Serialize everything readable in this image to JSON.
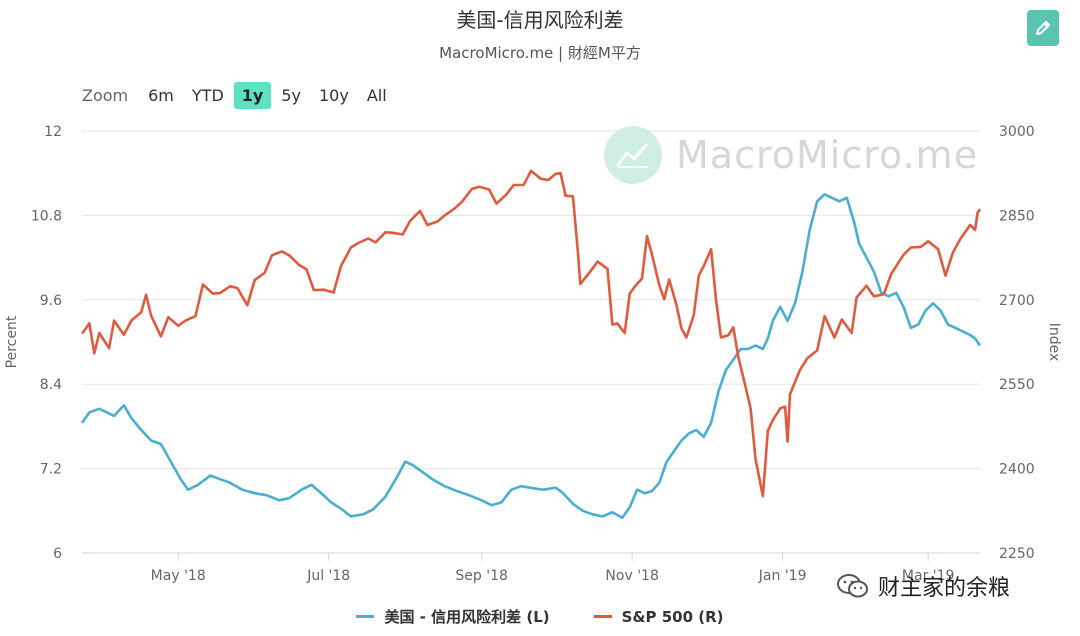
{
  "header": {
    "title": "美国-信用风险利差",
    "subtitle": "MacroMicro.me | 財經M平方"
  },
  "zoom": {
    "label": "Zoom",
    "buttons": [
      "6m",
      "YTD",
      "1y",
      "5y",
      "10y",
      "All"
    ],
    "active": "1y"
  },
  "watermark": {
    "text": "MacroMicro.me"
  },
  "wechat": {
    "text": "财主家的余粮"
  },
  "colors": {
    "spread": "#4aaed0",
    "sp500": "#e05a3e",
    "accent": "#5de1c1",
    "grid": "#e6e6e6"
  },
  "chart_data": {
    "type": "line",
    "left_axis": {
      "label": "Percent",
      "range": [
        6,
        12
      ],
      "ticks": [
        "6",
        "7.2",
        "8.4",
        "9.6",
        "10.8",
        "12"
      ]
    },
    "right_axis": {
      "label": "Index",
      "range": [
        2250,
        3000
      ],
      "ticks": [
        "2250",
        "2400",
        "2550",
        "2700",
        "2850",
        "3000"
      ]
    },
    "x_axis": {
      "range": [
        "2018-03-23",
        "2019-03-22"
      ],
      "ticks": [
        {
          "date": "2018-05-01",
          "label": "May '18"
        },
        {
          "date": "2018-07-01",
          "label": "Jul '18"
        },
        {
          "date": "2018-09-01",
          "label": "Sep '18"
        },
        {
          "date": "2018-11-01",
          "label": "Nov '18"
        },
        {
          "date": "2019-01-01",
          "label": "Jan '19"
        },
        {
          "date": "2019-03-01",
          "label": "Mar '19"
        }
      ]
    },
    "grid": true,
    "legend_position": "bottom-center",
    "series": [
      {
        "name": "美国 - 信用风险利差 (L)",
        "axis": "left",
        "points": [
          [
            "2018-03-23",
            7.85
          ],
          [
            "2018-03-26",
            8.0
          ],
          [
            "2018-03-30",
            8.05
          ],
          [
            "2018-04-05",
            7.95
          ],
          [
            "2018-04-09",
            8.1
          ],
          [
            "2018-04-12",
            7.92
          ],
          [
            "2018-04-16",
            7.75
          ],
          [
            "2018-04-20",
            7.6
          ],
          [
            "2018-04-24",
            7.55
          ],
          [
            "2018-04-28",
            7.3
          ],
          [
            "2018-05-02",
            7.05
          ],
          [
            "2018-05-05",
            6.9
          ],
          [
            "2018-05-09",
            6.97
          ],
          [
            "2018-05-14",
            7.1
          ],
          [
            "2018-05-18",
            7.05
          ],
          [
            "2018-05-22",
            7.0
          ],
          [
            "2018-05-27",
            6.9
          ],
          [
            "2018-06-01",
            6.85
          ],
          [
            "2018-06-06",
            6.82
          ],
          [
            "2018-06-11",
            6.75
          ],
          [
            "2018-06-15",
            6.78
          ],
          [
            "2018-06-20",
            6.9
          ],
          [
            "2018-06-24",
            6.97
          ],
          [
            "2018-06-28",
            6.85
          ],
          [
            "2018-07-02",
            6.72
          ],
          [
            "2018-07-06",
            6.63
          ],
          [
            "2018-07-10",
            6.52
          ],
          [
            "2018-07-15",
            6.55
          ],
          [
            "2018-07-19",
            6.62
          ],
          [
            "2018-07-24",
            6.8
          ],
          [
            "2018-07-29",
            7.1
          ],
          [
            "2018-08-01",
            7.3
          ],
          [
            "2018-08-04",
            7.25
          ],
          [
            "2018-08-08",
            7.15
          ],
          [
            "2018-08-12",
            7.05
          ],
          [
            "2018-08-17",
            6.95
          ],
          [
            "2018-08-22",
            6.88
          ],
          [
            "2018-08-27",
            6.82
          ],
          [
            "2018-09-01",
            6.75
          ],
          [
            "2018-09-05",
            6.68
          ],
          [
            "2018-09-09",
            6.72
          ],
          [
            "2018-09-13",
            6.9
          ],
          [
            "2018-09-17",
            6.95
          ],
          [
            "2018-09-22",
            6.92
          ],
          [
            "2018-09-26",
            6.9
          ],
          [
            "2018-10-01",
            6.93
          ],
          [
            "2018-10-04",
            6.85
          ],
          [
            "2018-10-08",
            6.7
          ],
          [
            "2018-10-12",
            6.6
          ],
          [
            "2018-10-16",
            6.55
          ],
          [
            "2018-10-20",
            6.52
          ],
          [
            "2018-10-24",
            6.58
          ],
          [
            "2018-10-28",
            6.5
          ],
          [
            "2018-10-31",
            6.65
          ],
          [
            "2018-11-03",
            6.9
          ],
          [
            "2018-11-06",
            6.85
          ],
          [
            "2018-11-09",
            6.88
          ],
          [
            "2018-11-12",
            7.0
          ],
          [
            "2018-11-15",
            7.3
          ],
          [
            "2018-11-18",
            7.45
          ],
          [
            "2018-11-21",
            7.6
          ],
          [
            "2018-11-24",
            7.7
          ],
          [
            "2018-11-27",
            7.75
          ],
          [
            "2018-11-30",
            7.65
          ],
          [
            "2018-12-03",
            7.85
          ],
          [
            "2018-12-06",
            8.3
          ],
          [
            "2018-12-09",
            8.6
          ],
          [
            "2018-12-12",
            8.75
          ],
          [
            "2018-12-15",
            8.9
          ],
          [
            "2018-12-18",
            8.9
          ],
          [
            "2018-12-21",
            8.95
          ],
          [
            "2018-12-24",
            8.9
          ],
          [
            "2018-12-26",
            9.05
          ],
          [
            "2018-12-28",
            9.3
          ],
          [
            "2018-12-31",
            9.5
          ],
          [
            "2019-01-03",
            9.3
          ],
          [
            "2019-01-06",
            9.55
          ],
          [
            "2019-01-09",
            10.0
          ],
          [
            "2019-01-12",
            10.6
          ],
          [
            "2019-01-15",
            11.0
          ],
          [
            "2019-01-18",
            11.1
          ],
          [
            "2019-01-21",
            11.05
          ],
          [
            "2019-01-24",
            11.0
          ],
          [
            "2019-01-27",
            11.05
          ],
          [
            "2019-01-30",
            10.7
          ],
          [
            "2019-02-01",
            10.4
          ],
          [
            "2019-02-04",
            10.2
          ],
          [
            "2019-02-07",
            10.0
          ],
          [
            "2019-02-10",
            9.7
          ],
          [
            "2019-02-13",
            9.65
          ],
          [
            "2019-02-16",
            9.7
          ],
          [
            "2019-02-19",
            9.5
          ],
          [
            "2019-02-22",
            9.2
          ],
          [
            "2019-02-25",
            9.25
          ],
          [
            "2019-02-28",
            9.45
          ],
          [
            "2019-03-03",
            9.55
          ],
          [
            "2019-03-06",
            9.45
          ],
          [
            "2019-03-09",
            9.25
          ],
          [
            "2019-03-12",
            9.2
          ],
          [
            "2019-03-15",
            9.15
          ],
          [
            "2019-03-18",
            9.1
          ],
          [
            "2019-03-20",
            9.05
          ],
          [
            "2019-03-22",
            8.95
          ]
        ]
      },
      {
        "name": "S&P 500 (R)",
        "axis": "right",
        "points": [
          [
            "2018-03-23",
            2640
          ],
          [
            "2018-03-26",
            2658
          ],
          [
            "2018-03-28",
            2605
          ],
          [
            "2018-03-30",
            2641
          ],
          [
            "2018-04-03",
            2614
          ],
          [
            "2018-04-05",
            2663
          ],
          [
            "2018-04-09",
            2638
          ],
          [
            "2018-04-12",
            2663
          ],
          [
            "2018-04-16",
            2678
          ],
          [
            "2018-04-18",
            2709
          ],
          [
            "2018-04-20",
            2672
          ],
          [
            "2018-04-24",
            2635
          ],
          [
            "2018-04-27",
            2669
          ],
          [
            "2018-05-01",
            2654
          ],
          [
            "2018-05-04",
            2663
          ],
          [
            "2018-05-08",
            2671
          ],
          [
            "2018-05-11",
            2727
          ],
          [
            "2018-05-15",
            2711
          ],
          [
            "2018-05-18",
            2712
          ],
          [
            "2018-05-22",
            2724
          ],
          [
            "2018-05-25",
            2721
          ],
          [
            "2018-05-29",
            2690
          ],
          [
            "2018-06-01",
            2735
          ],
          [
            "2018-06-05",
            2748
          ],
          [
            "2018-06-08",
            2779
          ],
          [
            "2018-06-12",
            2786
          ],
          [
            "2018-06-15",
            2779
          ],
          [
            "2018-06-19",
            2762
          ],
          [
            "2018-06-22",
            2754
          ],
          [
            "2018-06-25",
            2717
          ],
          [
            "2018-06-29",
            2718
          ],
          [
            "2018-07-03",
            2713
          ],
          [
            "2018-07-06",
            2760
          ],
          [
            "2018-07-10",
            2793
          ],
          [
            "2018-07-13",
            2801
          ],
          [
            "2018-07-17",
            2809
          ],
          [
            "2018-07-20",
            2802
          ],
          [
            "2018-07-24",
            2820
          ],
          [
            "2018-07-27",
            2819
          ],
          [
            "2018-07-31",
            2816
          ],
          [
            "2018-08-03",
            2840
          ],
          [
            "2018-08-07",
            2858
          ],
          [
            "2018-08-10",
            2833
          ],
          [
            "2018-08-14",
            2839
          ],
          [
            "2018-08-17",
            2850
          ],
          [
            "2018-08-21",
            2862
          ],
          [
            "2018-08-24",
            2874
          ],
          [
            "2018-08-28",
            2897
          ],
          [
            "2018-08-31",
            2901
          ],
          [
            "2018-09-04",
            2896
          ],
          [
            "2018-09-07",
            2871
          ],
          [
            "2018-09-11",
            2887
          ],
          [
            "2018-09-14",
            2904
          ],
          [
            "2018-09-18",
            2904
          ],
          [
            "2018-09-21",
            2929
          ],
          [
            "2018-09-25",
            2915
          ],
          [
            "2018-09-28",
            2913
          ],
          [
            "2018-10-01",
            2924
          ],
          [
            "2018-10-03",
            2925
          ],
          [
            "2018-10-05",
            2885
          ],
          [
            "2018-10-08",
            2884
          ],
          [
            "2018-10-10",
            2785
          ],
          [
            "2018-10-11",
            2728
          ],
          [
            "2018-10-15",
            2750
          ],
          [
            "2018-10-18",
            2768
          ],
          [
            "2018-10-22",
            2755
          ],
          [
            "2018-10-24",
            2656
          ],
          [
            "2018-10-26",
            2658
          ],
          [
            "2018-10-29",
            2641
          ],
          [
            "2018-10-31",
            2711
          ],
          [
            "2018-11-02",
            2723
          ],
          [
            "2018-11-05",
            2738
          ],
          [
            "2018-11-07",
            2813
          ],
          [
            "2018-11-09",
            2781
          ],
          [
            "2018-11-12",
            2726
          ],
          [
            "2018-11-14",
            2701
          ],
          [
            "2018-11-16",
            2736
          ],
          [
            "2018-11-19",
            2690
          ],
          [
            "2018-11-21",
            2649
          ],
          [
            "2018-11-23",
            2633
          ],
          [
            "2018-11-26",
            2673
          ],
          [
            "2018-11-28",
            2743
          ],
          [
            "2018-11-30",
            2760
          ],
          [
            "2018-12-03",
            2790
          ],
          [
            "2018-12-05",
            2700
          ],
          [
            "2018-12-07",
            2633
          ],
          [
            "2018-12-10",
            2637
          ],
          [
            "2018-12-12",
            2651
          ],
          [
            "2018-12-14",
            2599
          ],
          [
            "2018-12-17",
            2545
          ],
          [
            "2018-12-19",
            2507
          ],
          [
            "2018-12-21",
            2417
          ],
          [
            "2018-12-24",
            2351
          ],
          [
            "2018-12-26",
            2467
          ],
          [
            "2018-12-28",
            2486
          ],
          [
            "2018-12-31",
            2507
          ],
          [
            "2019-01-02",
            2510
          ],
          [
            "2019-01-03",
            2448
          ],
          [
            "2019-01-04",
            2532
          ],
          [
            "2019-01-08",
            2575
          ],
          [
            "2019-01-11",
            2596
          ],
          [
            "2019-01-15",
            2610
          ],
          [
            "2019-01-18",
            2671
          ],
          [
            "2019-01-22",
            2633
          ],
          [
            "2019-01-25",
            2665
          ],
          [
            "2019-01-29",
            2641
          ],
          [
            "2019-01-31",
            2704
          ],
          [
            "2019-02-04",
            2725
          ],
          [
            "2019-02-07",
            2706
          ],
          [
            "2019-02-11",
            2710
          ],
          [
            "2019-02-14",
            2746
          ],
          [
            "2019-02-19",
            2780
          ],
          [
            "2019-02-22",
            2793
          ],
          [
            "2019-02-26",
            2794
          ],
          [
            "2019-03-01",
            2804
          ],
          [
            "2019-03-05",
            2790
          ],
          [
            "2019-03-08",
            2743
          ],
          [
            "2019-03-11",
            2784
          ],
          [
            "2019-03-14",
            2808
          ],
          [
            "2019-03-18",
            2833
          ],
          [
            "2019-03-20",
            2824
          ],
          [
            "2019-03-21",
            2854
          ],
          [
            "2019-03-22",
            2861
          ]
        ]
      }
    ]
  }
}
